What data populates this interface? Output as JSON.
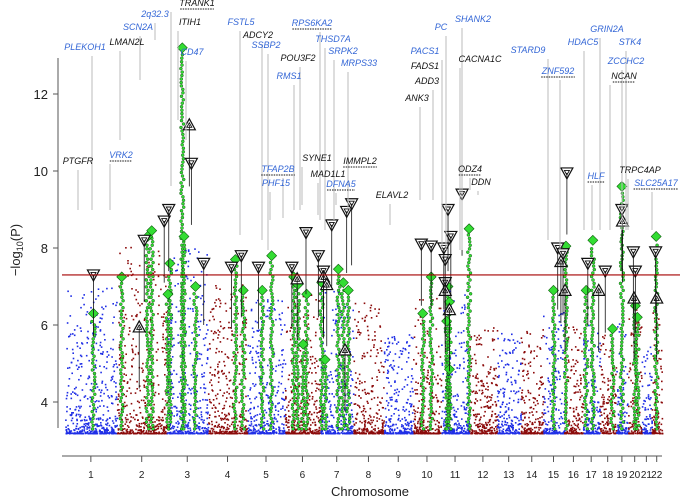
{
  "chart_data": {
    "type": "scatter",
    "title": "",
    "xlabel": "Chromosome",
    "ylabel": "−log10(P)",
    "ylim": [
      3.2,
      13.4
    ],
    "y_ticks": [
      4,
      6,
      8,
      10,
      12
    ],
    "significance_threshold": 7.3,
    "chromosomes": [
      "1",
      "2",
      "3",
      "4",
      "5",
      "6",
      "7",
      "8",
      "9",
      "10",
      "11",
      "12",
      "13",
      "14",
      "15",
      "16",
      "17",
      "18",
      "19",
      "20",
      "21",
      "22"
    ],
    "chrom_fraction": [
      0.0835,
      0.0807,
      0.0664,
      0.0636,
      0.0607,
      0.057,
      0.0536,
      0.0489,
      0.0473,
      0.0454,
      0.0453,
      0.0447,
      0.0385,
      0.036,
      0.0342,
      0.0302,
      0.0271,
      0.0262,
      0.0197,
      0.0216,
      0.0162,
      0.0171
    ],
    "colors": {
      "odd": "#1f2ee6",
      "even": "#8b0a0a",
      "threshold": "#a40000",
      "lead": "#33dd33",
      "label_blue": "#3366d6",
      "label_black": "#111111"
    },
    "series": [
      {
        "marker": "diamond-green",
        "points": [
          {
            "chrom": "1",
            "x": 0.55,
            "y": 6.3
          },
          {
            "chrom": "2",
            "x": 0.1,
            "y": 7.25
          },
          {
            "chrom": "2",
            "x": 0.62,
            "y": 8.3
          },
          {
            "chrom": "2",
            "x": 0.7,
            "y": 8.45
          },
          {
            "chrom": "3",
            "x": 0.03,
            "y": 6.8
          },
          {
            "chrom": "3",
            "x": 0.08,
            "y": 7.6
          },
          {
            "chrom": "3",
            "x": 0.38,
            "y": 13.3
          },
          {
            "chrom": "3",
            "x": 0.42,
            "y": 8.3
          },
          {
            "chrom": "3",
            "x": 0.7,
            "y": 7.0
          },
          {
            "chrom": "4",
            "x": 0.7,
            "y": 7.7
          },
          {
            "chrom": "4",
            "x": 0.9,
            "y": 6.9
          },
          {
            "chrom": "5",
            "x": 0.4,
            "y": 6.9
          },
          {
            "chrom": "5",
            "x": 0.65,
            "y": 7.8
          },
          {
            "chrom": "6",
            "x": 0.25,
            "y": 7.25
          },
          {
            "chrom": "6",
            "x": 0.37,
            "y": 7.05
          },
          {
            "chrom": "6",
            "x": 0.52,
            "y": 5.5
          },
          {
            "chrom": "6",
            "x": 0.62,
            "y": 6.8
          },
          {
            "chrom": "7",
            "x": 0.05,
            "y": 7.1
          },
          {
            "chrom": "7",
            "x": 0.15,
            "y": 5.1
          },
          {
            "chrom": "7",
            "x": 0.55,
            "y": 7.45
          },
          {
            "chrom": "7",
            "x": 0.7,
            "y": 7.1
          },
          {
            "chrom": "7",
            "x": 0.85,
            "y": 6.9
          },
          {
            "chrom": "10",
            "x": 0.35,
            "y": 6.3
          },
          {
            "chrom": "10",
            "x": 0.65,
            "y": 7.25
          },
          {
            "chrom": "11",
            "x": 0.2,
            "y": 6.1
          },
          {
            "chrom": "11",
            "x": 0.25,
            "y": 7.0
          },
          {
            "chrom": "11",
            "x": 0.3,
            "y": 6.6
          },
          {
            "chrom": "11",
            "x": 0.3,
            "y": 4.85
          },
          {
            "chrom": "12",
            "x": 0.0,
            "y": 8.5
          },
          {
            "chrom": "15",
            "x": 0.5,
            "y": 6.9
          },
          {
            "chrom": "16",
            "x": 0.1,
            "y": 8.05
          },
          {
            "chrom": "17",
            "x": 0.2,
            "y": 6.9
          },
          {
            "chrom": "17",
            "x": 0.6,
            "y": 8.2
          },
          {
            "chrom": "18",
            "x": 0.8,
            "y": 5.9
          },
          {
            "chrom": "19",
            "x": 0.5,
            "y": 9.6
          },
          {
            "chrom": "20",
            "x": 0.55,
            "y": 6.5
          },
          {
            "chrom": "20",
            "x": 0.7,
            "y": 6.2
          },
          {
            "chrom": "22",
            "x": 0.45,
            "y": 8.3
          }
        ]
      },
      {
        "marker": "triangle-down",
        "points": [
          {
            "chrom": "1",
            "x": 0.55,
            "y": 7.3
          },
          {
            "chrom": "2",
            "x": 0.55,
            "y": 8.2
          },
          {
            "chrom": "2",
            "x": 0.95,
            "y": 8.7
          },
          {
            "chrom": "3",
            "x": 0.05,
            "y": 9.0
          },
          {
            "chrom": "3",
            "x": 0.6,
            "y": 10.2
          },
          {
            "chrom": "3",
            "x": 0.9,
            "y": 7.6
          },
          {
            "chrom": "4",
            "x": 0.6,
            "y": 7.5
          },
          {
            "chrom": "4",
            "x": 0.85,
            "y": 7.8
          },
          {
            "chrom": "5",
            "x": 0.3,
            "y": 7.5
          },
          {
            "chrom": "6",
            "x": 0.2,
            "y": 7.5
          },
          {
            "chrom": "6",
            "x": 0.6,
            "y": 8.4
          },
          {
            "chrom": "6",
            "x": 0.95,
            "y": 7.8
          },
          {
            "chrom": "7",
            "x": 0.35,
            "y": 8.6
          },
          {
            "chrom": "7",
            "x": 0.1,
            "y": 7.4
          },
          {
            "chrom": "7",
            "x": 0.8,
            "y": 8.95
          },
          {
            "chrom": "7",
            "x": 0.95,
            "y": 9.15
          },
          {
            "chrom": "10",
            "x": 0.3,
            "y": 8.1
          },
          {
            "chrom": "10",
            "x": 0.65,
            "y": 8.05
          },
          {
            "chrom": "11",
            "x": 0.1,
            "y": 8.0
          },
          {
            "chrom": "11",
            "x": 0.15,
            "y": 7.7
          },
          {
            "chrom": "11",
            "x": 0.25,
            "y": 9.0
          },
          {
            "chrom": "11",
            "x": 0.35,
            "y": 8.3
          },
          {
            "chrom": "11",
            "x": 0.75,
            "y": 9.4
          },
          {
            "chrom": "11",
            "x": 0.15,
            "y": 7.1
          },
          {
            "chrom": "15",
            "x": 0.7,
            "y": 8.0
          },
          {
            "chrom": "15",
            "x": 0.95,
            "y": 7.85
          },
          {
            "chrom": "16",
            "x": 0.15,
            "y": 9.95
          },
          {
            "chrom": "17",
            "x": 0.3,
            "y": 7.6
          },
          {
            "chrom": "18",
            "x": 0.35,
            "y": 7.4
          },
          {
            "chrom": "19",
            "x": 0.5,
            "y": 9.0
          },
          {
            "chrom": "20",
            "x": 0.4,
            "y": 7.9
          },
          {
            "chrom": "20",
            "x": 0.55,
            "y": 7.4
          },
          {
            "chrom": "22",
            "x": 0.4,
            "y": 7.9
          }
        ]
      },
      {
        "marker": "triangle-up",
        "points": [
          {
            "chrom": "2",
            "x": 0.45,
            "y": 5.95
          },
          {
            "chrom": "3",
            "x": 0.55,
            "y": 11.2
          },
          {
            "chrom": "6",
            "x": 0.35,
            "y": 7.2
          },
          {
            "chrom": "7",
            "x": 0.1,
            "y": 7.25
          },
          {
            "chrom": "7",
            "x": 0.2,
            "y": 7.05
          },
          {
            "chrom": "7",
            "x": 0.75,
            "y": 5.35
          },
          {
            "chrom": "11",
            "x": 0.15,
            "y": 6.9
          },
          {
            "chrom": "11",
            "x": 0.3,
            "y": 6.4
          },
          {
            "chrom": "15",
            "x": 0.85,
            "y": 7.65
          },
          {
            "chrom": "16",
            "x": 0.05,
            "y": 6.9
          },
          {
            "chrom": "17",
            "x": 0.95,
            "y": 6.9
          },
          {
            "chrom": "19",
            "x": 0.55,
            "y": 8.7
          },
          {
            "chrom": "20",
            "x": 0.45,
            "y": 6.7
          },
          {
            "chrom": "22",
            "x": 0.5,
            "y": 6.7
          }
        ]
      }
    ],
    "annotations": [
      {
        "text": "TRANK1",
        "color": "black",
        "underline": true
      },
      {
        "text": "2q32.3",
        "color": "blue",
        "underline": false
      },
      {
        "text": "SCN2A",
        "color": "blue",
        "underline": false
      },
      {
        "text": "ITIH1",
        "color": "black",
        "underline": false
      },
      {
        "text": "LMAN2L",
        "color": "black",
        "underline": false
      },
      {
        "text": "PLEKOH1",
        "color": "blue",
        "underline": false
      },
      {
        "text": "CD47",
        "color": "blue",
        "underline": false
      },
      {
        "text": "FSTL5",
        "color": "blue",
        "underline": false
      },
      {
        "text": "ADCY2",
        "color": "black",
        "underline": false
      },
      {
        "text": "SSBP2",
        "color": "blue",
        "underline": false
      },
      {
        "text": "RPS6KA2",
        "color": "blue",
        "underline": true
      },
      {
        "text": "THSD7A",
        "color": "blue",
        "underline": false
      },
      {
        "text": "SRPK2",
        "color": "blue",
        "underline": false
      },
      {
        "text": "POU3F2",
        "color": "black",
        "underline": false
      },
      {
        "text": "MRPS33",
        "color": "blue",
        "underline": false
      },
      {
        "text": "RMS1",
        "color": "blue",
        "underline": false
      },
      {
        "text": "PTGFR",
        "color": "black",
        "underline": false
      },
      {
        "text": "VRK2",
        "color": "blue",
        "underline": true
      },
      {
        "text": "SYNE1",
        "color": "black",
        "underline": false
      },
      {
        "text": "TFAP2B",
        "color": "blue",
        "underline": true
      },
      {
        "text": "MAD1L1",
        "color": "black",
        "underline": false
      },
      {
        "text": "IMMPL2",
        "color": "black",
        "underline": true
      },
      {
        "text": "PHF15",
        "color": "blue",
        "underline": false
      },
      {
        "text": "DFNA5",
        "color": "blue",
        "underline": true
      },
      {
        "text": "ELAVL2",
        "color": "black",
        "underline": false
      },
      {
        "text": "PC",
        "color": "blue",
        "underline": false
      },
      {
        "text": "SHANK2",
        "color": "blue",
        "underline": false
      },
      {
        "text": "PACS1",
        "color": "blue",
        "underline": false
      },
      {
        "text": "FADS1",
        "color": "black",
        "underline": false
      },
      {
        "text": "CACNA1C",
        "color": "black",
        "underline": false
      },
      {
        "text": "ADD3",
        "color": "black",
        "underline": false
      },
      {
        "text": "ANK3",
        "color": "black",
        "underline": false
      },
      {
        "text": "ODZ4",
        "color": "black",
        "underline": true
      },
      {
        "text": "DDN",
        "color": "black",
        "underline": false
      },
      {
        "text": "GRIN2A",
        "color": "blue",
        "underline": false
      },
      {
        "text": "STARD9",
        "color": "blue",
        "underline": false
      },
      {
        "text": "HDAC5",
        "color": "blue",
        "underline": false
      },
      {
        "text": "STK4",
        "color": "blue",
        "underline": false
      },
      {
        "text": "ZNF592",
        "color": "blue",
        "underline": true
      },
      {
        "text": "ZCCHC2",
        "color": "blue",
        "underline": false
      },
      {
        "text": "NCAN",
        "color": "black",
        "underline": true
      },
      {
        "text": "HLF",
        "color": "blue",
        "underline": true
      },
      {
        "text": "TRPC4AP",
        "color": "black",
        "underline": false
      },
      {
        "text": "SLC25A17",
        "color": "blue",
        "underline": true
      }
    ]
  }
}
